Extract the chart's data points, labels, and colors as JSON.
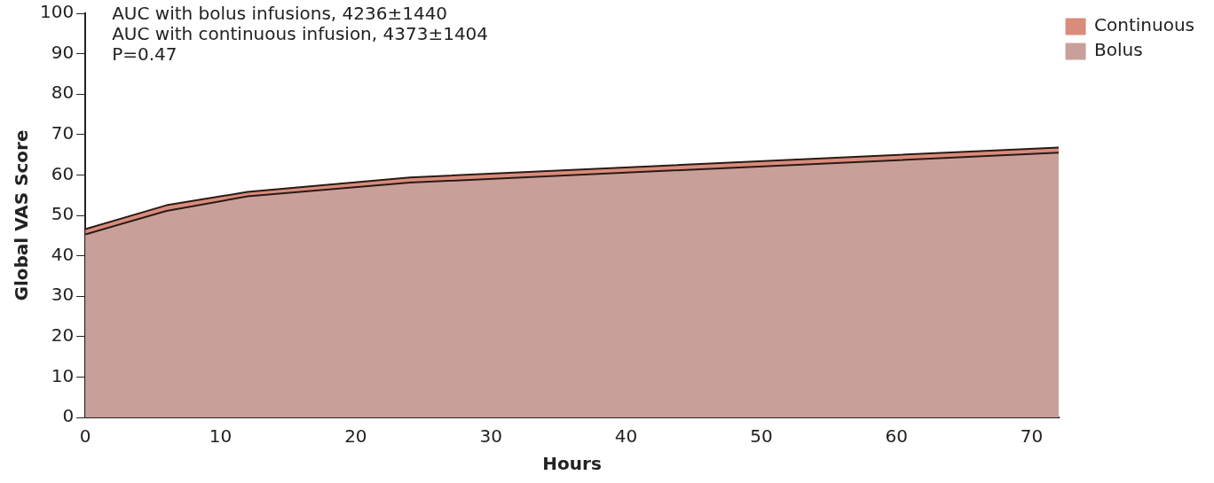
{
  "chart_data": {
    "type": "area",
    "xlabel": "Hours",
    "ylabel": "Global VAS Score",
    "x": [
      0,
      6,
      12,
      24,
      48,
      72
    ],
    "series": [
      {
        "name": "Continuous",
        "color": "#d98c7c",
        "values": [
          46.6,
          52.5,
          55.8,
          59.4,
          63.1,
          66.8
        ]
      },
      {
        "name": "Bolus",
        "color": "#c9a099",
        "values": [
          45.3,
          51.1,
          54.7,
          58.1,
          61.8,
          65.5
        ]
      }
    ],
    "xlim": [
      0,
      72
    ],
    "xticks": [
      0,
      10,
      20,
      30,
      40,
      50,
      60,
      70
    ],
    "ylim": [
      0,
      100
    ],
    "yticks": [
      0,
      10,
      20,
      30,
      40,
      50,
      60,
      70,
      80,
      90,
      100
    ],
    "grid": false,
    "legend": "top right",
    "annotations": [
      "AUC with bolus infusions, 4236±1440",
      "AUC with continuous infusion, 4373±1404",
      "P=0.47"
    ]
  }
}
